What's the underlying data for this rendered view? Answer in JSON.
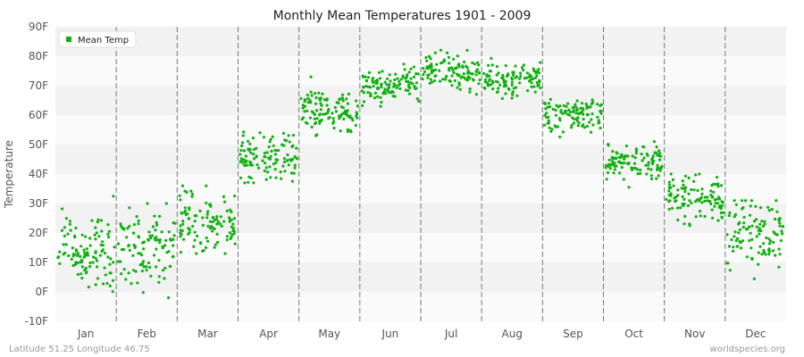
{
  "chart_data": {
    "type": "scatter",
    "title": "Monthly Mean Temperatures 1901 - 2009",
    "ylabel": "Temperature",
    "xlabel": "",
    "ylim": [
      -10,
      90
    ],
    "yticks": [
      "-10F",
      "0F",
      "10F",
      "20F",
      "30F",
      "40F",
      "50F",
      "60F",
      "70F",
      "80F",
      "90F"
    ],
    "categories": [
      "Jan",
      "Feb",
      "Mar",
      "Apr",
      "May",
      "Jun",
      "Jul",
      "Aug",
      "Sep",
      "Oct",
      "Nov",
      "Dec"
    ],
    "grid": "horizontal bands with dashed month separators",
    "legend": {
      "position": "top-left",
      "entries": [
        "Mean Temp"
      ]
    },
    "series": [
      {
        "name": "Mean Temp",
        "color": "#11b011",
        "points_per_month": 109,
        "month_stats": [
          {
            "month": "Jan",
            "mean": 14,
            "sd": 7,
            "min": -3,
            "max": 34
          },
          {
            "month": "Feb",
            "mean": 15,
            "sd": 7,
            "min": -7,
            "max": 30
          },
          {
            "month": "Mar",
            "mean": 24,
            "sd": 5,
            "min": 13,
            "max": 36
          },
          {
            "month": "Apr",
            "mean": 46,
            "sd": 4,
            "min": 37,
            "max": 56
          },
          {
            "month": "May",
            "mean": 61,
            "sd": 4,
            "min": 53,
            "max": 73
          },
          {
            "month": "Jun",
            "mean": 70,
            "sd": 3,
            "min": 63,
            "max": 80
          },
          {
            "month": "Jul",
            "mean": 74,
            "sd": 3,
            "min": 66,
            "max": 83
          },
          {
            "month": "Aug",
            "mean": 72,
            "sd": 3,
            "min": 63,
            "max": 80
          },
          {
            "month": "Sep",
            "mean": 60,
            "sd": 3,
            "min": 50,
            "max": 69
          },
          {
            "month": "Oct",
            "mean": 44,
            "sd": 3,
            "min": 33,
            "max": 52
          },
          {
            "month": "Nov",
            "mean": 32,
            "sd": 4,
            "min": 22,
            "max": 40
          },
          {
            "month": "Dec",
            "mean": 19,
            "sd": 6,
            "min": 3,
            "max": 31
          }
        ]
      }
    ]
  },
  "footer": {
    "location": "Latitude 51.25 Longitude 46.75",
    "source": "worldspecies.org"
  }
}
